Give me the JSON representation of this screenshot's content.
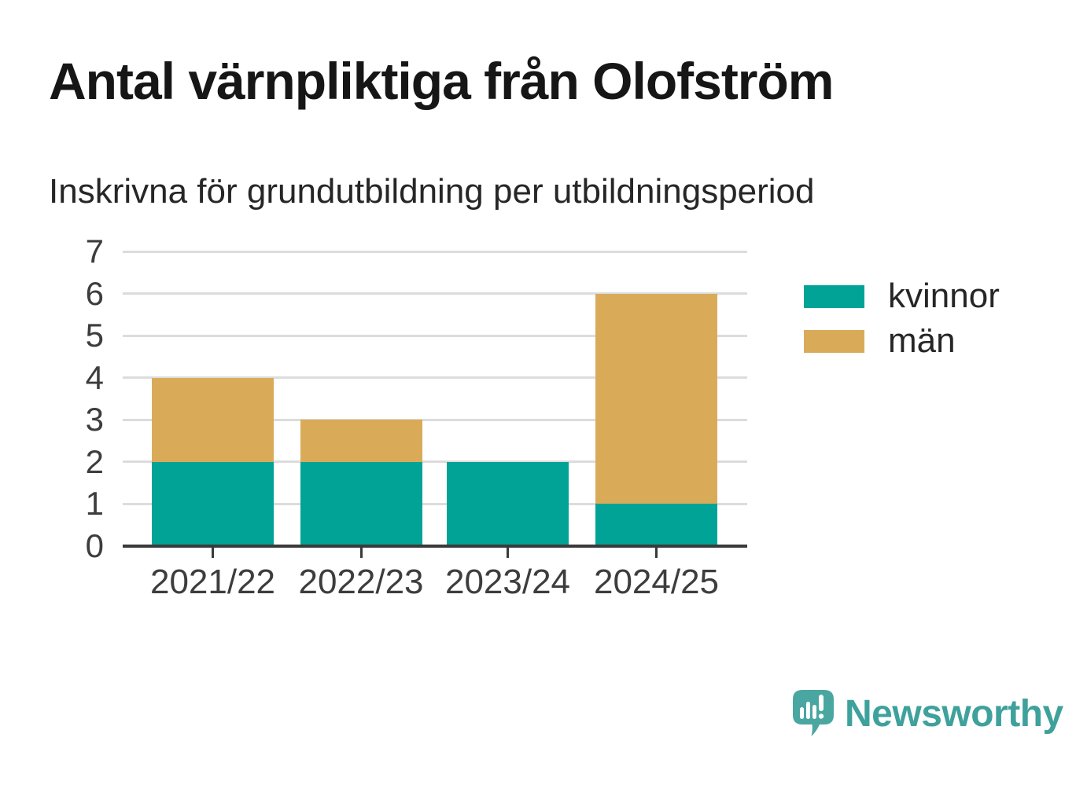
{
  "chart_data": {
    "type": "bar",
    "stacked": true,
    "title": "Antal värnpliktiga från Olofström",
    "subtitle": "Inskrivna för grundutbildning per utbildningsperiod",
    "categories": [
      "2021/22",
      "2022/23",
      "2023/24",
      "2024/25"
    ],
    "series": [
      {
        "name": "kvinnor",
        "color": "#00a396",
        "values": [
          2,
          2,
          2,
          1
        ]
      },
      {
        "name": "män",
        "color": "#d9ab59",
        "values": [
          2,
          1,
          0,
          5
        ]
      }
    ],
    "totals": [
      4,
      3,
      2,
      6
    ],
    "xlabel": "",
    "ylabel": "",
    "ylim": [
      0,
      7
    ],
    "yticks": [
      0,
      1,
      2,
      3,
      4,
      5,
      6,
      7
    ],
    "grid": true,
    "legend_position": "right"
  },
  "branding": {
    "logo_text": "Newsworthy",
    "logo_color": "#3fa19b",
    "logo_bubble_color": "#4aa6a1",
    "logo_icon": "bar-chart-speech-bubble"
  },
  "colors": {
    "background": "#ffffff",
    "axis": "#3a3a3a",
    "gridline": "#dcdcdc",
    "text": "#262626"
  }
}
